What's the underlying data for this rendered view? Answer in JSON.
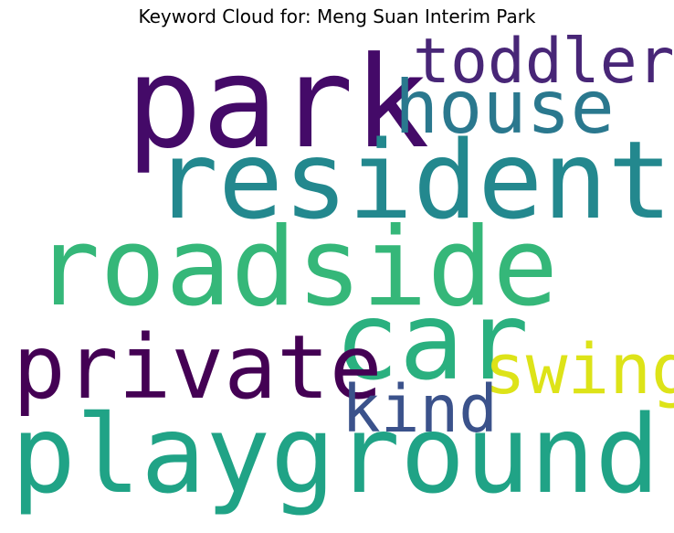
{
  "title": "Keyword Cloud for: Meng Suan Interim Park",
  "words": [
    {
      "text": "park",
      "color": "#440a68"
    },
    {
      "text": "toddler",
      "color": "#482677"
    },
    {
      "text": "house",
      "color": "#2a788e"
    },
    {
      "text": "resident",
      "color": "#23888e"
    },
    {
      "text": "roadside",
      "color": "#35b779"
    },
    {
      "text": "car",
      "color": "#2ab07f"
    },
    {
      "text": "private",
      "color": "#440154"
    },
    {
      "text": "swing",
      "color": "#dde318"
    },
    {
      "text": "kind",
      "color": "#3b528b"
    },
    {
      "text": "playground",
      "color": "#20a386"
    }
  ]
}
